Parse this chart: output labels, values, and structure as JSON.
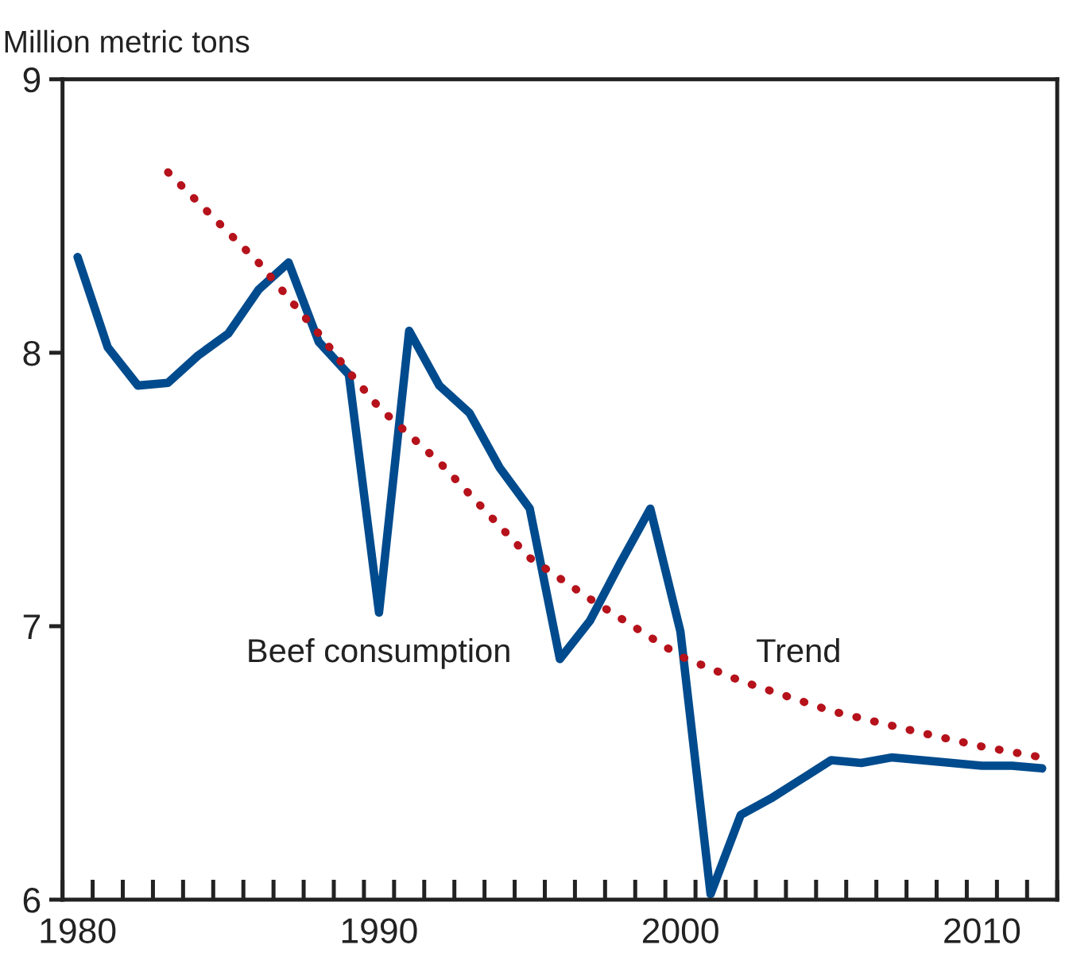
{
  "chart_data": {
    "type": "line",
    "ylabel": "Million metric tons",
    "x": [
      1980,
      1981,
      1982,
      1983,
      1984,
      1985,
      1986,
      1987,
      1988,
      1989,
      1990,
      1991,
      1992,
      1993,
      1994,
      1995,
      1996,
      1997,
      1998,
      1999,
      2000,
      2001,
      2002,
      2003,
      2004,
      2005,
      2006,
      2007,
      2008,
      2009,
      2010,
      2011,
      2012
    ],
    "series": [
      {
        "name": "Beef consumption",
        "color": "#004b8d",
        "line_style": "solid",
        "values": [
          8.35,
          8.02,
          7.88,
          7.89,
          7.99,
          8.07,
          8.23,
          8.33,
          8.04,
          7.92,
          7.05,
          8.08,
          7.88,
          7.78,
          7.58,
          7.43,
          6.88,
          7.02,
          7.23,
          7.43,
          6.98,
          6.02,
          6.31,
          6.37,
          6.44,
          6.51,
          6.5,
          6.52,
          6.51,
          6.5,
          6.49,
          6.49,
          6.48
        ]
      },
      {
        "name": "Trend",
        "color": "#b5121b",
        "line_style": "dotted",
        "x": [
          1983,
          1984,
          1985,
          1986,
          1987,
          1988,
          1989,
          1990,
          1992,
          1995,
          1997,
          2000,
          2002,
          2005,
          2008,
          2010,
          2012
        ],
        "values": [
          8.66,
          8.55,
          8.44,
          8.33,
          8.2,
          8.07,
          7.93,
          7.8,
          7.6,
          7.25,
          7.1,
          6.89,
          6.8,
          6.69,
          6.61,
          6.56,
          6.52
        ]
      }
    ],
    "xlim": [
      1979.5,
      2012.5
    ],
    "xticks": [
      {
        "value": 1980,
        "label": "1980"
      },
      {
        "value": 1990,
        "label": "1990"
      },
      {
        "value": 2000,
        "label": "2000"
      },
      {
        "value": 2010,
        "label": "2010"
      }
    ],
    "ylim": [
      6,
      9
    ],
    "yticks": [
      6,
      7,
      8,
      9
    ],
    "grid": false,
    "legend": false
  }
}
